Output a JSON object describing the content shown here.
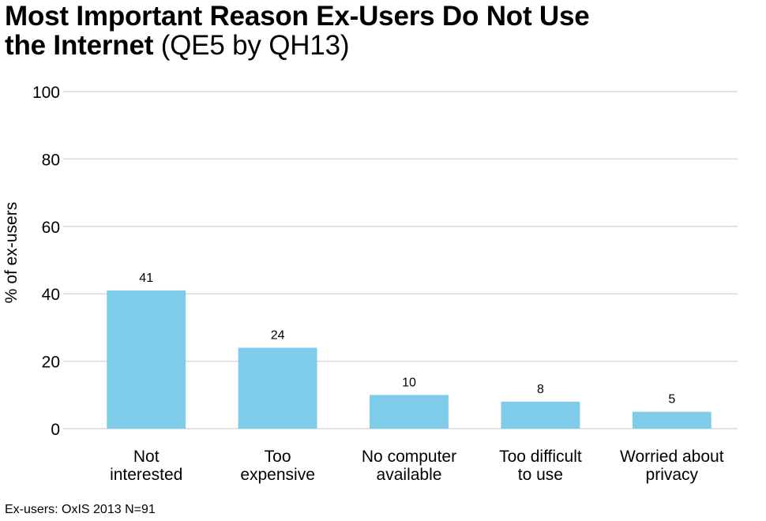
{
  "chart_data": {
    "type": "bar",
    "title": "Most Important Reason Ex-Users Do Not Use the Internet",
    "subtitle": "(QE5 by QH13)",
    "categories": [
      [
        "Not",
        "interested"
      ],
      [
        "Too",
        "expensive"
      ],
      [
        "No computer",
        "available"
      ],
      [
        "Too difficult",
        "to use"
      ],
      [
        "Worried about",
        "privacy"
      ]
    ],
    "values": [
      41,
      24,
      10,
      8,
      5
    ],
    "data_labels": [
      "41",
      "24",
      "10",
      "8",
      "5"
    ],
    "xlabel": "",
    "ylabel": "% of ex-users",
    "ylim": [
      0,
      100
    ],
    "yticks": [
      0,
      20,
      40,
      60,
      80,
      100
    ],
    "grid": true,
    "bar_color": "#7ecbea"
  },
  "header": {
    "title_line1": "Most Important Reason Ex-Users Do Not Use",
    "title_line2_bold": "the Internet",
    "title_line2_normal": " (QE5 by QH13)"
  },
  "footer": {
    "source": "Ex-users: OxIS 2013 N=91"
  }
}
